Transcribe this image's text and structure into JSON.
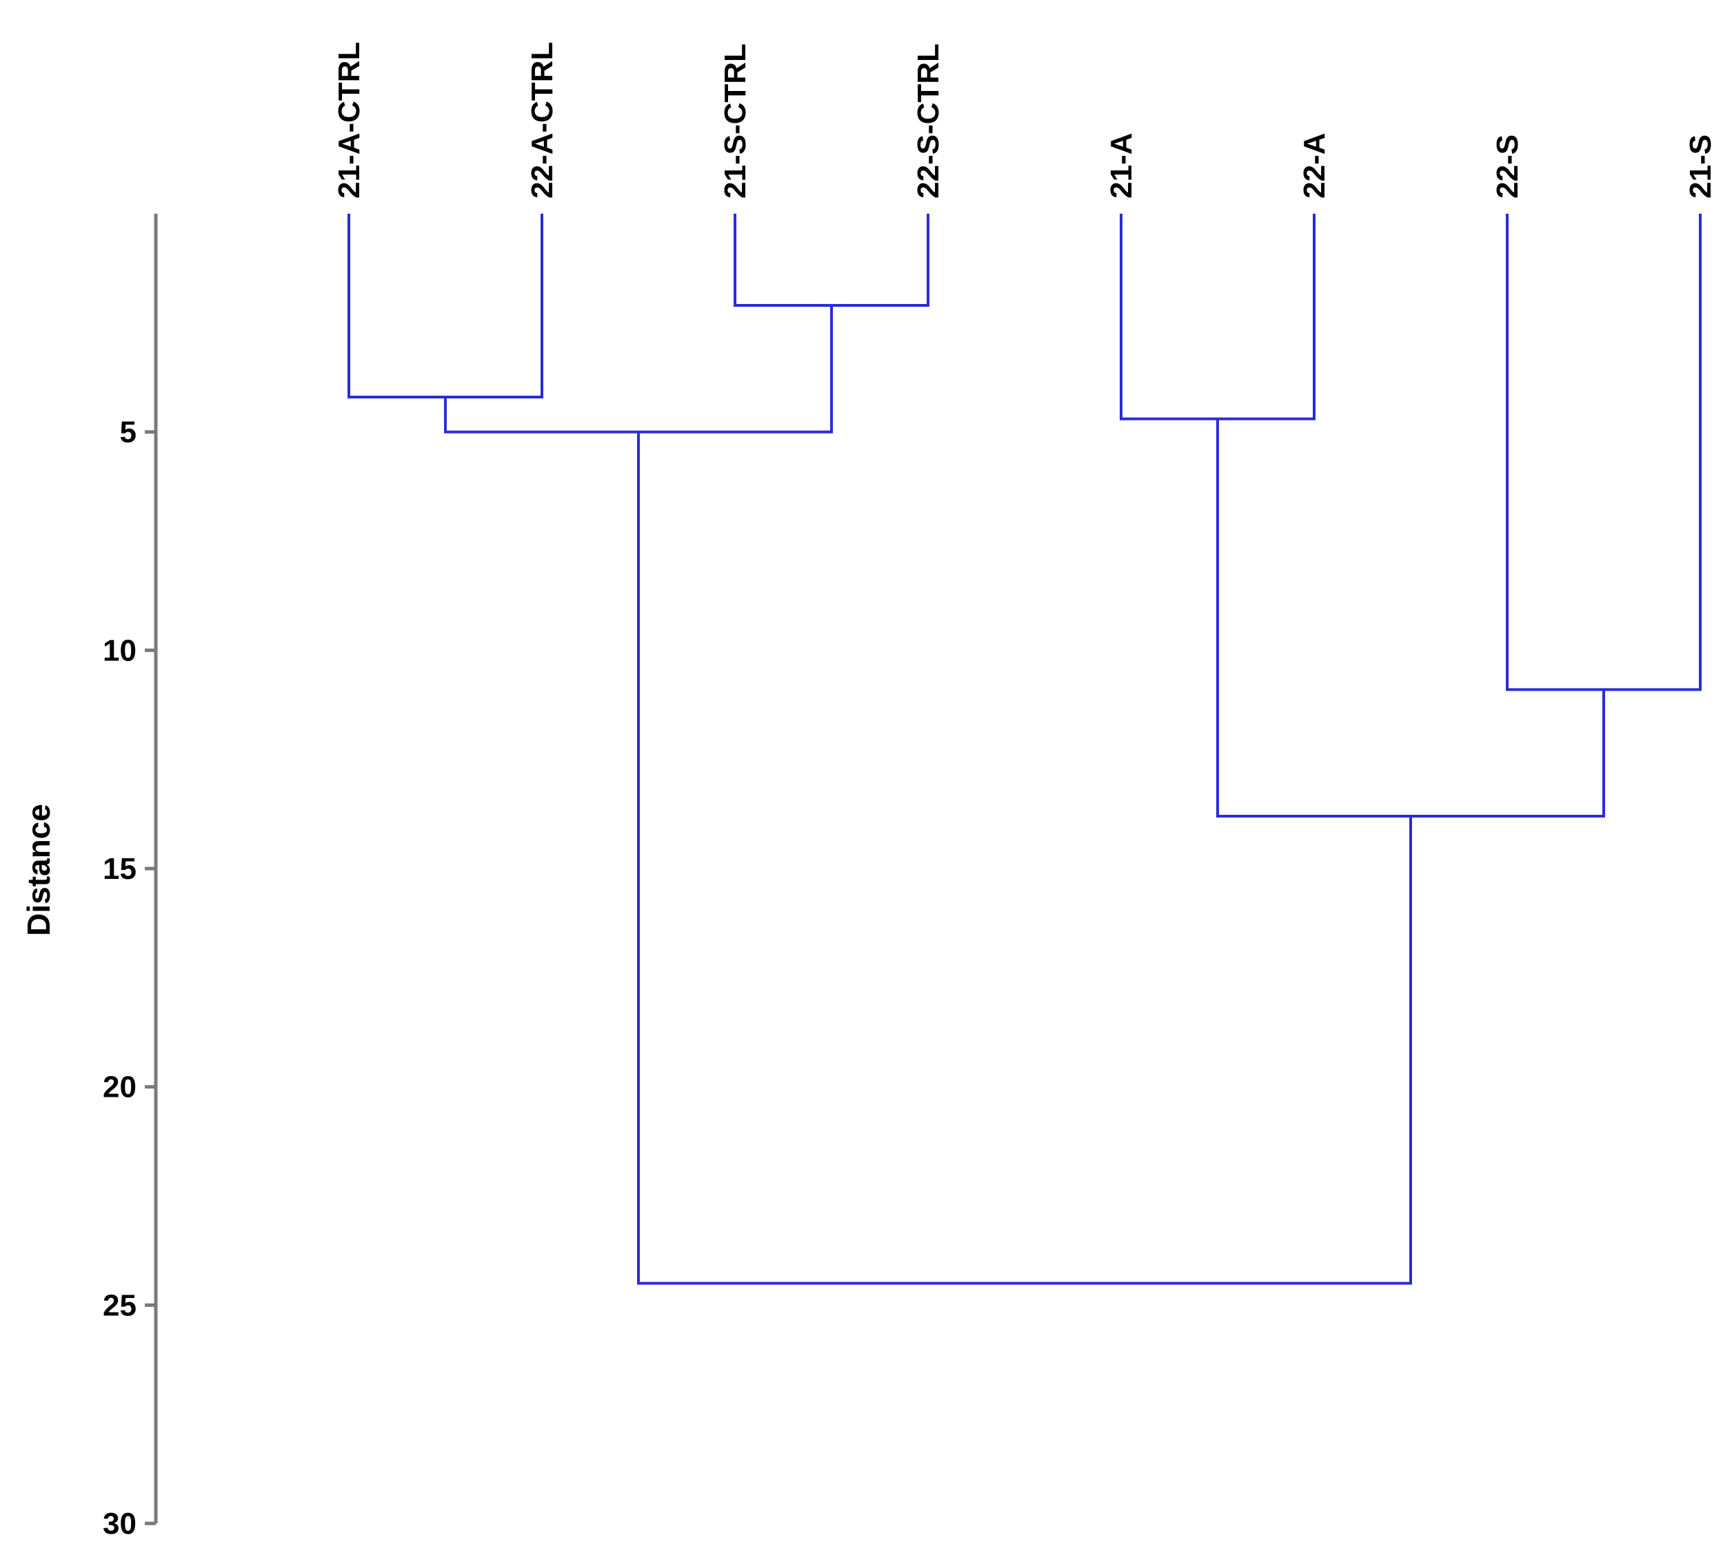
{
  "chart_data": {
    "type": "dendrogram",
    "ylabel": "Distance",
    "ylim": [
      0,
      30
    ],
    "y_ticks": [
      5,
      10,
      15,
      20,
      25,
      30
    ],
    "leaves": [
      "21-A-CTRL",
      "22-A-CTRL",
      "21-S-CTRL",
      "22-S-CTRL",
      "21-A",
      "22-A",
      "22-S",
      "21-S"
    ],
    "merges": [
      {
        "left": "21-S-CTRL",
        "right": "22-S-CTRL",
        "distance": 2.1
      },
      {
        "left": "21-A-CTRL",
        "right": "22-A-CTRL",
        "distance": 4.2
      },
      {
        "left": "21-A",
        "right": "22-A",
        "distance": 4.7
      },
      {
        "left": "21-A-CTRL + 22-A-CTRL",
        "right": "21-S-CTRL + 22-S-CTRL",
        "distance": 5.0
      },
      {
        "left": "22-S",
        "right": "21-S",
        "distance": 10.9
      },
      {
        "left": "21-A + 22-A",
        "right": "22-S + 21-S",
        "distance": 13.8
      },
      {
        "left": "21-A-CTRL + 22-A-CTRL + 21-S-CTRL + 22-S-CTRL",
        "right": "21-A + 22-A + 22-S + 21-S",
        "distance": 24.5
      }
    ],
    "colors": {
      "link": "#2b2bd9",
      "axis": "#7a7a7a",
      "text": "#000000"
    }
  }
}
